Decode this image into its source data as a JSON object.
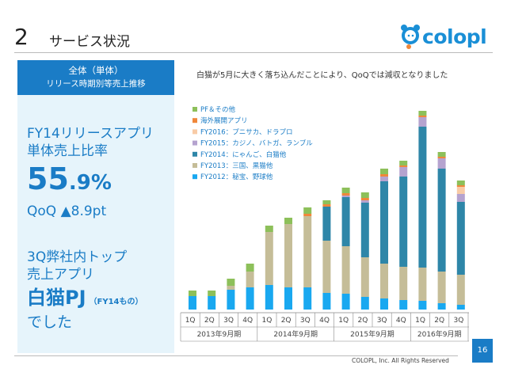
{
  "header": {
    "number": "2",
    "title": "サービス状況"
  },
  "logo": {
    "text": "colopl"
  },
  "left_panel": {
    "header_line1": "全体（単体）",
    "header_line2": "リリース時期別等売上推移",
    "fy14_line1": "FY14リリースアプリ",
    "fy14_line2": "単体売上比率",
    "big_int": "55",
    "big_dec": ".9%",
    "qoq": "QoQ ▲8.9pt",
    "top_line1": "3Q弊社内トップ",
    "top_line2": "売上アプリ",
    "shironeko": "白猫PJ",
    "shironeko_sub": "（FY14もの）",
    "deshita": "でした"
  },
  "comment": "白猫が5月に大きく落ち込んだことにより、QoQでは減収となりました",
  "footer": {
    "page": "16",
    "copyright": "COLOPL, Inc. All Rights Reserved"
  },
  "colors": {
    "FY2012": "#19a8f0",
    "FY2013": "#c5bd98",
    "FY2014": "#2e86a8",
    "FY2015": "#b5a3cf",
    "FY2016": "#f8cba6",
    "overseas": "#f0873a",
    "pf": "#8dc05a"
  },
  "chart_data": {
    "type": "bar",
    "stacked": true,
    "quarters": [
      "1Q",
      "2Q",
      "3Q",
      "4Q",
      "1Q",
      "2Q",
      "3Q",
      "4Q",
      "1Q",
      "2Q",
      "3Q",
      "4Q",
      "1Q",
      "2Q",
      "3Q"
    ],
    "periods": [
      "2013年9月期",
      "2014年9月期",
      "2015年9月期",
      "2016年9月期"
    ],
    "legend_position": "top-left",
    "series": [
      {
        "name": "FY2012：秘宝、野球他",
        "key": "FY2012",
        "values": [
          17,
          17,
          25,
          28,
          31,
          28,
          28,
          21,
          20,
          16,
          14,
          12,
          11,
          8,
          6
        ]
      },
      {
        "name": "FY2013：三国、黒猫他",
        "key": "FY2013",
        "values": [
          0,
          0,
          5,
          20,
          67,
          80,
          90,
          66,
          60,
          50,
          44,
          42,
          42,
          40,
          38
        ]
      },
      {
        "name": "FY2014：にゃんご、白猫他",
        "key": "FY2014",
        "values": [
          0,
          0,
          0,
          0,
          0,
          0,
          0,
          43,
          62,
          69,
          104,
          114,
          178,
          130,
          92
        ]
      },
      {
        "name": "FY2015：カジノ、バトガ、ランブル",
        "key": "FY2015",
        "values": [
          0,
          0,
          0,
          0,
          0,
          0,
          0,
          0,
          2,
          3,
          6,
          12,
          12,
          13,
          10
        ]
      },
      {
        "name": "FY2016：プニサカ、ドラプロ",
        "key": "FY2016",
        "values": [
          0,
          0,
          0,
          0,
          0,
          0,
          0,
          0,
          0,
          0,
          0,
          0,
          0,
          0,
          9
        ]
      },
      {
        "name": "海外展開アプリ",
        "key": "overseas",
        "values": [
          0,
          0,
          0,
          0,
          0,
          0,
          3,
          3,
          3,
          3,
          3,
          2,
          2,
          2,
          2
        ]
      },
      {
        "name": "PF＆その他",
        "key": "pf",
        "values": [
          7,
          7,
          9,
          10,
          8,
          8,
          8,
          5,
          7,
          7,
          7,
          6,
          6,
          6,
          6
        ]
      }
    ],
    "legend_order": [
      "pf",
      "overseas",
      "FY2016",
      "FY2015",
      "FY2014",
      "FY2013",
      "FY2012"
    ]
  }
}
